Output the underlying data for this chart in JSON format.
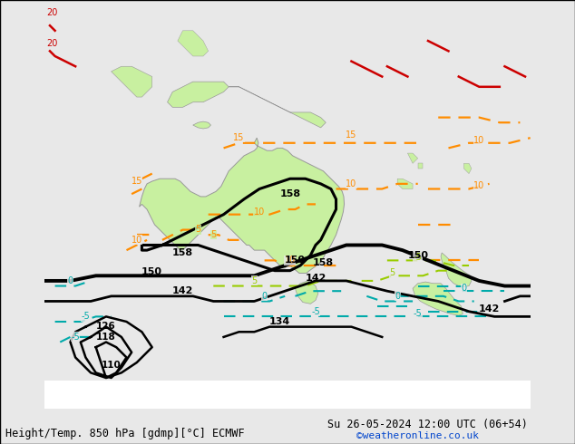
{
  "title_left": "Height/Temp. 850 hPa [gdmp][°C] ECMWF",
  "title_right": "Su 26-05-2024 12:00 UTC (06+54)",
  "credit": "©weatheronline.co.uk",
  "bg_ocean": "#e8e8e8",
  "bg_land": "#c8f0a0",
  "fig_width": 6.34,
  "fig_height": 4.9,
  "dpi": 100,
  "lon_min": 95,
  "lon_max": 190,
  "lat_min": -65,
  "lat_max": 15
}
